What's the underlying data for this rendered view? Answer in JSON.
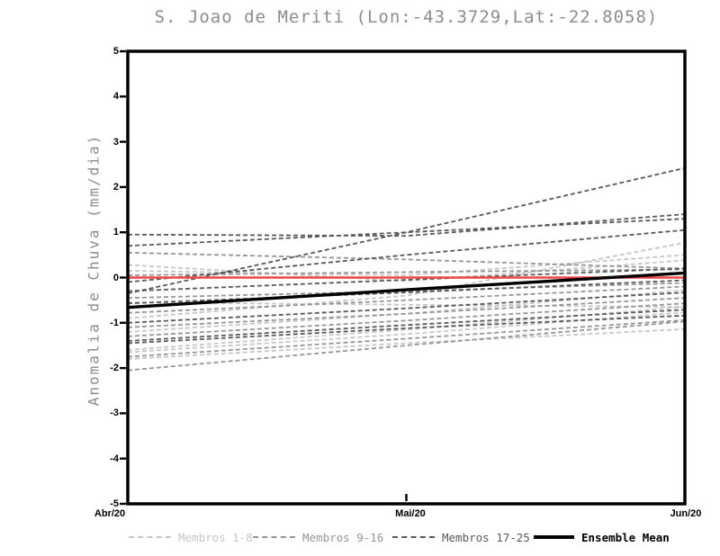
{
  "chart_data": {
    "type": "line",
    "title": "S. Joao de Meriti (Lon:-43.3729,Lat:-22.8058)",
    "ylabel": "Anomalia de Chuva (mm/dia)",
    "xlabel": "",
    "x_categories": [
      "Abr/20",
      "Mai/20",
      "Jun/20"
    ],
    "ylim": [
      -5,
      5
    ],
    "yticks": [
      5,
      4,
      3,
      2,
      1,
      0,
      -1,
      -2,
      -3,
      -4,
      -5
    ],
    "grid": false,
    "legend_position": "bottom",
    "colors": {
      "axis": "#000000",
      "title_text": "#8c8c8c",
      "zero_line": "#ec4646",
      "members_1_8": "#c6c6c6",
      "members_9_16": "#969696",
      "members_17_25": "#585858",
      "ensemble_mean": "#000000"
    },
    "zero_line": {
      "name": "zero-reference",
      "color": "#ec4646",
      "values": [
        0,
        0,
        0
      ]
    },
    "series_groups": [
      {
        "name": "Membros 1-8",
        "color": "#c6c6c6",
        "line_style": "dashed",
        "members": [
          [
            0.28,
            -0.08,
            0.38
          ],
          [
            0.15,
            0.05,
            0.5
          ],
          [
            -0.9,
            -0.4,
            0.77
          ],
          [
            -0.55,
            -0.6,
            -0.65
          ],
          [
            -1.2,
            -0.8,
            -0.28
          ],
          [
            -1.6,
            -1.15,
            -0.65
          ],
          [
            -1.65,
            -1.25,
            -0.77
          ],
          [
            -1.8,
            -1.45,
            -1.14
          ]
        ]
      },
      {
        "name": "Membros 9-16",
        "color": "#969696",
        "line_style": "dashed",
        "members": [
          [
            0.55,
            0.4,
            0.2
          ],
          [
            0.05,
            0.12,
            0.18
          ],
          [
            -0.45,
            -0.3,
            -0.12
          ],
          [
            -0.78,
            -0.5,
            -0.2
          ],
          [
            -1.1,
            -0.8,
            -0.45
          ],
          [
            -1.3,
            -0.95,
            -0.57
          ],
          [
            -1.75,
            -1.35,
            -0.94
          ],
          [
            -2.05,
            -1.5,
            -0.97
          ]
        ]
      },
      {
        "name": "Membros 17-25",
        "color": "#585858",
        "line_style": "dashed",
        "members": [
          [
            -0.35,
            1.0,
            2.42
          ],
          [
            0.95,
            0.92,
            1.4
          ],
          [
            0.7,
            1.0,
            1.3
          ],
          [
            -0.1,
            0.5,
            1.05
          ],
          [
            -0.3,
            -0.05,
            0.2
          ],
          [
            -0.57,
            -0.33,
            -0.06
          ],
          [
            -1.0,
            -0.68,
            -0.33
          ],
          [
            -1.4,
            -1.05,
            -0.71
          ],
          [
            -1.45,
            -1.12,
            -0.84
          ]
        ]
      }
    ],
    "ensemble_mean": {
      "name": "Ensemble Mean",
      "color": "#000000",
      "line_style": "solid",
      "values": [
        -0.66,
        -0.27,
        0.1
      ]
    },
    "legend": {
      "items": [
        {
          "label": "Membros 1-8",
          "color": "#c6c6c6",
          "swatch": "dashed"
        },
        {
          "label": "Membros 9-16",
          "color": "#969696",
          "swatch": "dashed"
        },
        {
          "label": "Membros 17-25",
          "color": "#585858",
          "swatch": "dashed"
        },
        {
          "label": "Ensemble Mean",
          "color": "#000000",
          "swatch": "solid-thick"
        }
      ]
    }
  }
}
